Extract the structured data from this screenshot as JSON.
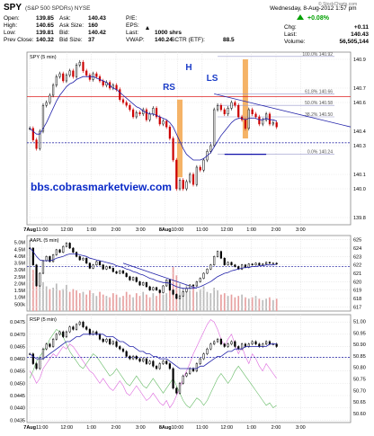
{
  "header": {
    "symbol": "SPY",
    "name": "(S&P 500 SPDRs) NYSE",
    "datetime": "Wednesday, 8-Aug-2012 1:57 pm",
    "credit": "© StockCharts.com",
    "quote": [
      {
        "label": "Open:",
        "value": "139.85"
      },
      {
        "label": "High:",
        "value": "140.65"
      },
      {
        "label": "Low:",
        "value": "139.81"
      },
      {
        "label": "Prev Close:",
        "value": "140.32"
      }
    ],
    "quote2": [
      {
        "label": "Ask:",
        "value": "140.43"
      },
      {
        "label": "Ask Size:",
        "value": "160"
      },
      {
        "label": "Bid:",
        "value": "140.42"
      },
      {
        "label": "Bid Size:",
        "value": "37"
      }
    ],
    "quote3": [
      {
        "label": "P/E:",
        "value": ""
      },
      {
        "label": "EPS:",
        "value": ""
      },
      {
        "label": "Last:",
        "value": "1000 shrs"
      },
      {
        "label": "VWAP:",
        "value": "140.24"
      }
    ],
    "sctr": {
      "label": "SCTR (ETF):",
      "value": "88.5"
    },
    "change_value": "+0.08%",
    "chg": {
      "label": "Chg:",
      "value": "+0.11"
    },
    "last": {
      "label": "Last:",
      "value": "140.43"
    },
    "volume": {
      "label": "Volume:",
      "value": "56,505,144"
    },
    "up_color": "#00a000"
  },
  "chart_data": [
    {
      "type": "candlestick",
      "panel": "price",
      "title": "SPY (5 min)",
      "ylim": [
        139.75,
        140.95
      ],
      "yticks": [
        139.8,
        140.0,
        140.1,
        140.3,
        140.4,
        140.6,
        140.7,
        140.9
      ],
      "annotations": {
        "rs": "RS",
        "h": "H",
        "ls": "LS",
        "watermark": "bbs.cobrasmarketview.com",
        "fib": [
          "100.0% 140.92",
          "61.8% 140.66",
          "50.0% 140.58",
          "38.2% 140.50",
          "0.0% 140.24"
        ],
        "fib_values": [
          140.92,
          140.66,
          140.58,
          140.5,
          140.24
        ],
        "prev_close": 140.32,
        "resistance": 140.64,
        "neckline": 140.24
      },
      "closes": [
        140.42,
        140.34,
        140.28,
        140.4,
        140.58,
        140.6,
        140.65,
        140.72,
        140.78,
        140.8,
        140.75,
        140.79,
        140.82,
        140.78,
        140.86,
        140.88,
        140.82,
        140.79,
        140.76,
        140.8,
        140.78,
        140.75,
        140.72,
        140.74,
        140.7,
        140.72,
        140.69,
        140.62,
        140.6,
        140.58,
        140.55,
        140.5,
        140.53,
        140.52,
        140.55,
        140.48,
        140.52,
        140.56,
        140.5,
        140.45,
        140.47,
        140.43,
        140.35,
        140.2,
        140.0,
        140.06,
        140.0,
        140.05,
        140.1,
        140.03,
        140.15,
        140.13,
        140.2,
        140.26,
        140.3,
        140.55,
        140.58,
        140.55,
        140.52,
        140.56,
        140.6,
        140.58,
        140.5,
        140.48,
        140.42,
        140.55,
        140.52,
        140.5,
        140.45,
        140.48,
        140.52,
        140.45,
        140.46,
        140.43
      ],
      "series": [
        {
          "name": "",
          "color": "#2222aa",
          "values": [
            140.42,
            140.4,
            140.38,
            140.38,
            140.42,
            140.46,
            140.51,
            140.56,
            140.61,
            140.65,
            140.68,
            140.71,
            140.73,
            140.74,
            140.76,
            140.77,
            140.78,
            140.78,
            140.78,
            140.78,
            140.77,
            140.76,
            140.75,
            140.74,
            140.72,
            140.7,
            140.69,
            140.67,
            140.65,
            140.63,
            140.61,
            140.59,
            140.57,
            140.56,
            140.54,
            140.53,
            140.52,
            140.52,
            140.51,
            140.5,
            140.49,
            140.48,
            140.46,
            140.43,
            140.38,
            140.33,
            140.28,
            140.24,
            140.22,
            140.2,
            140.2,
            140.2,
            140.21,
            140.23,
            140.25,
            140.29,
            140.33,
            140.37,
            140.4,
            140.43,
            140.46,
            140.48,
            140.49,
            140.49,
            140.48,
            140.49,
            140.49,
            140.49,
            140.48,
            140.48,
            140.49,
            140.48,
            140.48,
            140.47
          ]
        }
      ]
    },
    {
      "type": "candlestick",
      "panel": "aapl",
      "title": "AAPL (5 min)",
      "ylim": [
        616.5,
        625.5
      ],
      "yticks": [
        617,
        618,
        619,
        620,
        621,
        622,
        623,
        624,
        625
      ],
      "volume_ticks": [
        "5.0M",
        "4.5M",
        "4.0M",
        "3.5M",
        "3.0M",
        "2.5M",
        "2.0M",
        "1.5M",
        "1.0M",
        "500k"
      ],
      "volume_max": 5500000,
      "support": 621.8,
      "closes": [
        624.0,
        622.0,
        619.5,
        621.0,
        622.5,
        623.0,
        622.4,
        623.2,
        623.8,
        623.5,
        624.2,
        624.6,
        624.0,
        623.5,
        623.0,
        622.6,
        622.8,
        622.2,
        621.6,
        622.0,
        622.4,
        622.0,
        621.5,
        621.8,
        621.6,
        621.2,
        621.0,
        621.3,
        621.0,
        620.6,
        620.2,
        620.5,
        620.0,
        619.6,
        619.9,
        619.4,
        619.0,
        619.3,
        619.0,
        618.7,
        619.5,
        620.2,
        619.0,
        618.5,
        618.0,
        618.3,
        618.8,
        619.2,
        619.6,
        619.5,
        620.0,
        620.4,
        621.0,
        621.5,
        622.0,
        623.0,
        623.6,
        622.8,
        622.0,
        622.3,
        622.0,
        621.8,
        621.5,
        622.0,
        621.7,
        622.1,
        622.0,
        622.2,
        622.0,
        622.1,
        622.3,
        622.2,
        622.2,
        622.1
      ],
      "volume": [
        5200000,
        3000000,
        2400000,
        2000000,
        2100000,
        1800000,
        1600000,
        1700000,
        2000000,
        1500000,
        1600000,
        1900000,
        1400000,
        1600000,
        1500000,
        1300000,
        1400000,
        1200000,
        1500000,
        1300000,
        1100000,
        1400000,
        1200000,
        1100000,
        1000000,
        1300000,
        1200000,
        1000000,
        1100000,
        1400000,
        1200000,
        1000000,
        1300000,
        1100000,
        1400000,
        1200000,
        1000000,
        1300000,
        1100000,
        1500000,
        1200000,
        1300000,
        1600000,
        3200000,
        2600000,
        2000000,
        1700000,
        1900000,
        1500000,
        1800000,
        1400000,
        1600000,
        1800000,
        1400000,
        1300000,
        1700000,
        1500000,
        1200000,
        1300000,
        1100000,
        1200000,
        1000000,
        1100000,
        1200000,
        1000000,
        900000,
        1000000,
        1100000,
        900000,
        800000,
        900000,
        1000000,
        800000,
        900000
      ],
      "series": [
        {
          "name": "",
          "color": "#2222aa",
          "values": [
            624.0,
            623.6,
            623.0,
            622.6,
            622.5,
            622.5,
            622.5,
            622.6,
            622.8,
            622.9,
            623.0,
            623.2,
            623.3,
            623.3,
            623.3,
            623.2,
            623.1,
            623.0,
            622.8,
            622.7,
            622.6,
            622.5,
            622.4,
            622.3,
            622.2,
            622.1,
            621.9,
            621.8,
            621.7,
            621.5,
            621.4,
            621.2,
            621.1,
            620.9,
            620.8,
            620.6,
            620.4,
            620.3,
            620.1,
            620.0,
            619.9,
            619.9,
            619.8,
            619.6,
            619.4,
            619.3,
            619.2,
            619.2,
            619.2,
            619.2,
            619.3,
            619.4,
            619.6,
            619.8,
            620.0,
            620.3,
            620.6,
            620.8,
            621.0,
            621.1,
            621.3,
            621.4,
            621.5,
            621.6,
            621.7,
            621.7,
            621.8,
            621.8,
            621.9,
            621.9,
            622.0,
            622.0,
            622.0,
            622.1
          ]
        }
      ]
    },
    {
      "type": "candlestick",
      "panel": "rsp",
      "title": "RSP (5 min)",
      "ylim": [
        0.0434,
        0.0478
      ],
      "yticks": [
        0.0435,
        0.044,
        0.0445,
        0.045,
        0.0455,
        0.046,
        0.0465,
        0.047,
        0.0475
      ],
      "right_ylim": [
        50.56,
        51.03
      ],
      "right_ticks": [
        50.6,
        50.65,
        50.7,
        50.75,
        50.8,
        50.85,
        50.9,
        50.95,
        51.0
      ],
      "support": 0.04606,
      "closes": [
        0.0462,
        0.0458,
        0.0456,
        0.046,
        0.0464,
        0.0466,
        0.0465,
        0.0468,
        0.047,
        0.0471,
        0.0469,
        0.0471,
        0.0473,
        0.0472,
        0.0474,
        0.0475,
        0.0473,
        0.0472,
        0.047,
        0.0471,
        0.047,
        0.0468,
        0.0467,
        0.0468,
        0.0466,
        0.0467,
        0.0465,
        0.0464,
        0.0463,
        0.0461,
        0.046,
        0.0461,
        0.046,
        0.0459,
        0.046,
        0.0458,
        0.0459,
        0.0457,
        0.0456,
        0.0458,
        0.0459,
        0.0458,
        0.0456,
        0.0448,
        0.0446,
        0.045,
        0.0453,
        0.0454,
        0.0456,
        0.0455,
        0.0458,
        0.046,
        0.0462,
        0.0464,
        0.0466,
        0.0467,
        0.0468,
        0.0466,
        0.0465,
        0.0466,
        0.0467,
        0.0465,
        0.0464,
        0.0466,
        0.0465,
        0.0466,
        0.0467,
        0.0466,
        0.0465,
        0.0466,
        0.0467,
        0.0466,
        0.0466,
        0.0465
      ],
      "series": [
        {
          "name": "",
          "color": "#2222aa",
          "values": [
            0.0462,
            0.0461,
            0.046,
            0.046,
            0.046,
            0.0461,
            0.0462,
            0.0463,
            0.0464,
            0.0465,
            0.0466,
            0.0467,
            0.0467,
            0.0468,
            0.0469,
            0.0469,
            0.047,
            0.047,
            0.047,
            0.047,
            0.047,
            0.047,
            0.047,
            0.0469,
            0.0469,
            0.0469,
            0.0468,
            0.0467,
            0.0467,
            0.0466,
            0.0465,
            0.0465,
            0.0464,
            0.0463,
            0.0463,
            0.0462,
            0.0462,
            0.0461,
            0.0461,
            0.046,
            0.046,
            0.046,
            0.0459,
            0.0458,
            0.0457,
            0.0456,
            0.0456,
            0.0456,
            0.0456,
            0.0456,
            0.0456,
            0.0457,
            0.0457,
            0.0458,
            0.0459,
            0.046,
            0.0461,
            0.0461,
            0.0462,
            0.0463,
            0.0463,
            0.0464,
            0.0464,
            0.0464,
            0.0465,
            0.0465,
            0.0465,
            0.0465,
            0.0465,
            0.0465,
            0.0465,
            0.0466,
            0.0466,
            0.0466
          ]
        },
        {
          "name": "",
          "color": "#dd66dd",
          "values": [
            0.0455,
            0.0453,
            0.045,
            0.0452,
            0.0456,
            0.0458,
            0.046,
            0.0462,
            0.0461,
            0.0463,
            0.0465,
            0.0464,
            0.0466,
            0.0465,
            0.0463,
            0.0461,
            0.0459,
            0.0457,
            0.0455,
            0.0454,
            0.0452,
            0.045,
            0.0452,
            0.045,
            0.0448,
            0.0447,
            0.0449,
            0.0451,
            0.0449,
            0.0446,
            0.0445,
            0.0447,
            0.0449,
            0.0447,
            0.0445,
            0.0443,
            0.0444,
            0.0446,
            0.0444,
            0.0442,
            0.0441,
            0.0443,
            0.044,
            0.0442,
            0.0445,
            0.0448,
            0.0452,
            0.0455,
            0.0458,
            0.0462,
            0.0465,
            0.0468,
            0.0471,
            0.0474,
            0.0476,
            0.0475,
            0.0472,
            0.0468,
            0.0465,
            0.0468,
            0.047,
            0.0466,
            0.0462,
            0.0465,
            0.0461,
            0.0458,
            0.0462,
            0.046,
            0.0457,
            0.0455,
            0.0458,
            0.0456,
            0.0454,
            0.0452
          ]
        },
        {
          "name": "",
          "color": "#66bb66",
          "values": [
            0.0452,
            0.0455,
            0.0459,
            0.0461,
            0.0463,
            0.0465,
            0.0468,
            0.047,
            0.0472,
            0.0471,
            0.0469,
            0.0466,
            0.0463,
            0.0461,
            0.0459,
            0.0457,
            0.0456,
            0.0458,
            0.046,
            0.0462,
            0.0461,
            0.0459,
            0.0457,
            0.0455,
            0.0453,
            0.0454,
            0.0456,
            0.0454,
            0.0452,
            0.045,
            0.0449,
            0.0451,
            0.0453,
            0.0451,
            0.0449,
            0.0448,
            0.045,
            0.0452,
            0.045,
            0.0448,
            0.0446,
            0.0448,
            0.045,
            0.0452,
            0.0449,
            0.0446,
            0.0443,
            0.0441,
            0.044,
            0.0442,
            0.0444,
            0.0443,
            0.0441,
            0.0443,
            0.0446,
            0.0449,
            0.0452,
            0.0454,
            0.0452,
            0.045,
            0.0452,
            0.0455,
            0.0457,
            0.0455,
            0.0453,
            0.0451,
            0.0449,
            0.0447,
            0.0445,
            0.0443,
            0.0441,
            0.0442,
            0.044,
            0.0441
          ]
        }
      ]
    }
  ],
  "xaxis": {
    "labels": [
      "7Aug",
      "11:00",
      "12:00",
      "1:00",
      "2:00",
      "3:00",
      "8Aug",
      "10:00",
      "11:00",
      "12:00",
      "1:00",
      "2:00",
      "3:00"
    ],
    "bold": [
      true,
      false,
      false,
      false,
      false,
      false,
      true,
      false,
      false,
      false,
      false,
      false,
      false
    ],
    "bars": [
      0,
      6,
      18,
      30,
      42,
      54,
      66,
      72,
      84,
      96,
      108,
      120,
      132
    ],
    "session_bars": 78
  }
}
